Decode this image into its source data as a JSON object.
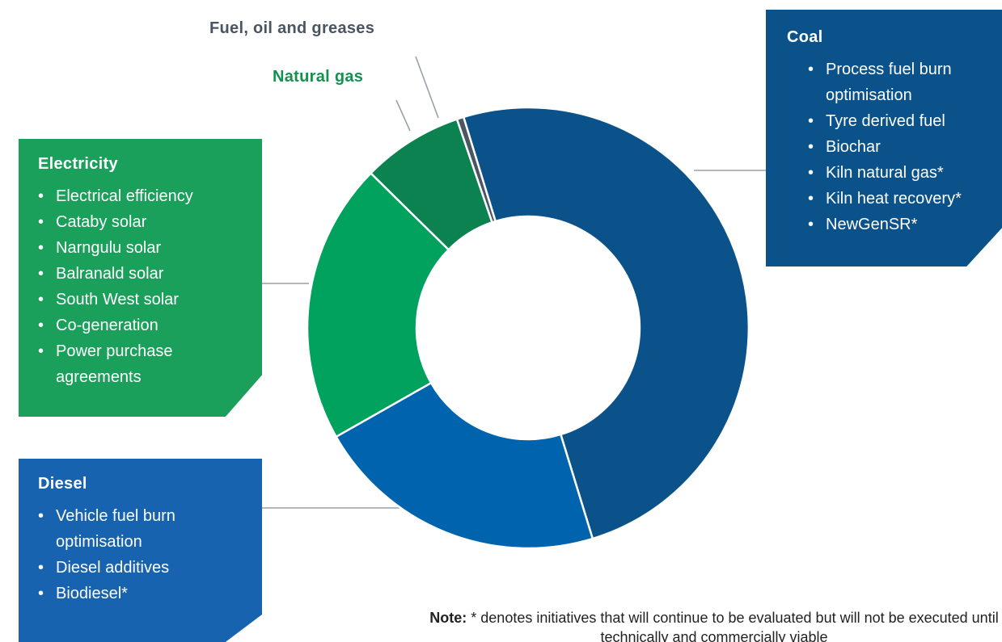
{
  "chart_data": {
    "type": "pie",
    "title": "",
    "donut": true,
    "slices": [
      {
        "label": "Coal",
        "value": 50.0,
        "color": "#0a5289"
      },
      {
        "label": "Diesel",
        "value": 21.5,
        "color": "#0063ae"
      },
      {
        "label": "Electricity",
        "value": 20.6,
        "color": "#00a25e"
      },
      {
        "label": "Natural gas",
        "value": 7.4,
        "color": "#0b8250"
      },
      {
        "label": "Fuel, oil and greases",
        "value": 0.5,
        "color": "#4b5563"
      }
    ]
  },
  "labels": {
    "fuel_oil_greases": "Fuel, oil and greases",
    "natural_gas": "Natural gas"
  },
  "callouts": {
    "coal": {
      "title": "Coal",
      "items": [
        "Process fuel burn optimisation",
        "Tyre derived fuel",
        "Biochar",
        "Kiln natural gas*",
        "Kiln heat recovery*",
        "NewGenSR*"
      ]
    },
    "electricity": {
      "title": "Electricity",
      "items": [
        "Electrical efficiency",
        "Cataby solar",
        "Narngulu solar",
        "Balranald solar",
        "South West solar",
        "Co-generation",
        "Power purchase agreements"
      ]
    },
    "diesel": {
      "title": "Diesel",
      "items": [
        "Vehicle fuel burn optimisation",
        "Diesel additives",
        "Biodiesel*"
      ]
    }
  },
  "note": {
    "label": "Note:",
    "text": " * denotes initiatives that will continue to be evaluated but will not be executed until technically and commercially viable"
  },
  "colors": {
    "leader_line": "#9aa1a8",
    "fuel_label": "#4a5563",
    "gas_label": "#12924f"
  }
}
